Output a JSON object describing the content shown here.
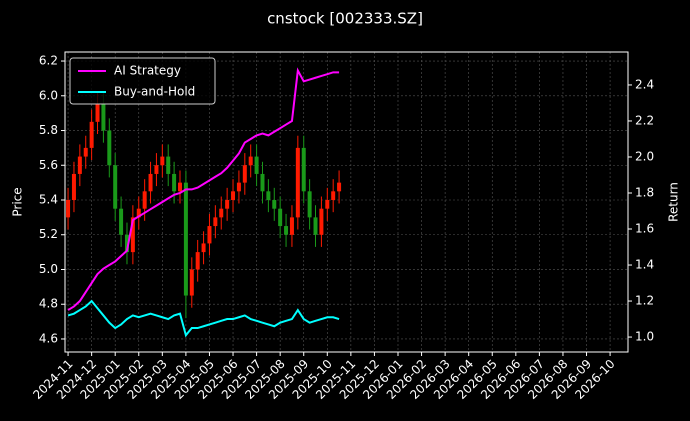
{
  "chart_data": {
    "type": "candlestick",
    "title": "cnstock [002333.SZ]",
    "ylabel": "Price",
    "y2label": "Return",
    "x": [
      0,
      0.25,
      0.5,
      0.75,
      1,
      1.25,
      1.5,
      1.75,
      2,
      2.25,
      2.5,
      2.75,
      3,
      3.25,
      3.5,
      3.75,
      4,
      4.25,
      4.5,
      4.75,
      5,
      5.25,
      5.5,
      5.75,
      6,
      6.25,
      6.5,
      6.75,
      7,
      7.25,
      7.5,
      7.75,
      8,
      8.25,
      8.5,
      8.75,
      9,
      9.25,
      9.5,
      9.75,
      10,
      10.25,
      10.5,
      10.75,
      11,
      11.25,
      11.5
    ],
    "open": [
      5.3,
      5.4,
      5.55,
      5.65,
      5.7,
      5.85,
      5.95,
      5.8,
      5.6,
      5.35,
      5.2,
      5.1,
      5.3,
      5.35,
      5.45,
      5.55,
      5.6,
      5.65,
      5.55,
      5.45,
      5.5,
      4.85,
      5.0,
      5.1,
      5.15,
      5.25,
      5.3,
      5.35,
      5.4,
      5.45,
      5.5,
      5.6,
      5.65,
      5.55,
      5.45,
      5.4,
      5.35,
      5.25,
      5.2,
      5.3,
      5.7,
      5.45,
      5.3,
      5.2,
      5.35,
      5.4,
      5.45
    ],
    "high": [
      5.47,
      5.62,
      5.72,
      5.77,
      5.92,
      6.02,
      6.02,
      5.87,
      5.67,
      5.42,
      5.27,
      5.37,
      5.42,
      5.52,
      5.62,
      5.67,
      5.72,
      5.72,
      5.62,
      5.57,
      5.57,
      5.07,
      5.17,
      5.22,
      5.32,
      5.37,
      5.42,
      5.47,
      5.52,
      5.57,
      5.67,
      5.72,
      5.72,
      5.62,
      5.52,
      5.47,
      5.42,
      5.32,
      5.37,
      5.77,
      5.77,
      5.52,
      5.37,
      5.42,
      5.47,
      5.52,
      5.57
    ],
    "low": [
      5.23,
      5.33,
      5.48,
      5.58,
      5.63,
      5.78,
      5.73,
      5.53,
      5.28,
      5.13,
      5.03,
      5.03,
      5.23,
      5.28,
      5.38,
      5.48,
      5.53,
      5.48,
      5.38,
      5.38,
      4.72,
      4.78,
      4.93,
      5.03,
      5.08,
      5.18,
      5.23,
      5.28,
      5.33,
      5.38,
      5.43,
      5.53,
      5.48,
      5.38,
      5.33,
      5.28,
      5.18,
      5.13,
      5.13,
      5.23,
      5.38,
      5.23,
      5.13,
      5.13,
      5.28,
      5.33,
      5.38
    ],
    "close": [
      5.4,
      5.55,
      5.65,
      5.7,
      5.85,
      5.95,
      5.8,
      5.6,
      5.35,
      5.2,
      5.1,
      5.3,
      5.35,
      5.45,
      5.55,
      5.6,
      5.65,
      5.55,
      5.45,
      5.5,
      4.85,
      5.0,
      5.1,
      5.15,
      5.25,
      5.3,
      5.35,
      5.4,
      5.45,
      5.5,
      5.6,
      5.65,
      5.55,
      5.45,
      5.4,
      5.35,
      5.25,
      5.2,
      5.3,
      5.7,
      5.45,
      5.3,
      5.2,
      5.35,
      5.4,
      5.45,
      5.5
    ],
    "up_color": "#ff1a00",
    "down_color": "#1a9a1a",
    "series": [
      {
        "name": "AI Strategy",
        "color": "#ff00ff",
        "axis": "y2",
        "values": [
          1.15,
          1.17,
          1.2,
          1.25,
          1.3,
          1.35,
          1.38,
          1.4,
          1.42,
          1.45,
          1.48,
          1.65,
          1.67,
          1.69,
          1.71,
          1.73,
          1.75,
          1.77,
          1.79,
          1.8,
          1.82,
          1.82,
          1.83,
          1.85,
          1.87,
          1.89,
          1.91,
          1.94,
          1.98,
          2.02,
          2.08,
          2.1,
          2.12,
          2.13,
          2.12,
          2.14,
          2.16,
          2.18,
          2.2,
          2.48,
          2.42,
          2.43,
          2.44,
          2.45,
          2.46,
          2.47,
          2.47
        ]
      },
      {
        "name": "Buy-and-Hold",
        "color": "#00ffff",
        "axis": "y2",
        "values": [
          1.12,
          1.13,
          1.15,
          1.17,
          1.2,
          1.16,
          1.12,
          1.08,
          1.05,
          1.07,
          1.1,
          1.12,
          1.11,
          1.12,
          1.13,
          1.12,
          1.11,
          1.1,
          1.12,
          1.13,
          1.01,
          1.05,
          1.05,
          1.06,
          1.07,
          1.08,
          1.09,
          1.1,
          1.1,
          1.11,
          1.12,
          1.1,
          1.09,
          1.08,
          1.07,
          1.06,
          1.08,
          1.09,
          1.1,
          1.15,
          1.1,
          1.08,
          1.09,
          1.1,
          1.11,
          1.11,
          1.1
        ]
      }
    ],
    "xlim": [
      -0.13,
      23.76
    ],
    "xticks": [
      {
        "value": 0,
        "label": "2024-11"
      },
      {
        "value": 1,
        "label": "2024-12"
      },
      {
        "value": 2,
        "label": "2025-01"
      },
      {
        "value": 3,
        "label": "2025-02"
      },
      {
        "value": 4,
        "label": "2025-03"
      },
      {
        "value": 5,
        "label": "2025-04"
      },
      {
        "value": 6,
        "label": "2025-05"
      },
      {
        "value": 7,
        "label": "2025-06"
      },
      {
        "value": 8,
        "label": "2025-07"
      },
      {
        "value": 9,
        "label": "2025-08"
      },
      {
        "value": 10,
        "label": "2025-09"
      },
      {
        "value": 11,
        "label": "2025-10"
      },
      {
        "value": 12,
        "label": "2025-11"
      },
      {
        "value": 13,
        "label": "2025-12"
      },
      {
        "value": 14,
        "label": "2026-01"
      },
      {
        "value": 15,
        "label": "2026-02"
      },
      {
        "value": 16,
        "label": "2026-03"
      },
      {
        "value": 17,
        "label": "2026-04"
      },
      {
        "value": 18,
        "label": "2026-05"
      },
      {
        "value": 19,
        "label": "2026-06"
      },
      {
        "value": 20,
        "label": "2026-07"
      },
      {
        "value": 21,
        "label": "2026-08"
      },
      {
        "value": 22,
        "label": "2026-09"
      },
      {
        "value": 23,
        "label": "2026-10"
      }
    ],
    "ylim": [
      4.525,
      6.252
    ],
    "yticks": [
      {
        "value": 4.6,
        "label": "4.6"
      },
      {
        "value": 4.8,
        "label": "4.8"
      },
      {
        "value": 5.0,
        "label": "5.0"
      },
      {
        "value": 5.2,
        "label": "5.2"
      },
      {
        "value": 5.4,
        "label": "5.4"
      },
      {
        "value": 5.6,
        "label": "5.6"
      },
      {
        "value": 5.8,
        "label": "5.8"
      },
      {
        "value": 6.0,
        "label": "6.0"
      },
      {
        "value": 6.2,
        "label": "6.2"
      }
    ],
    "y2lim": [
      0.917,
      2.583
    ],
    "y2ticks": [
      {
        "value": 1.0,
        "label": "1.0"
      },
      {
        "value": 1.2,
        "label": "1.2"
      },
      {
        "value": 1.4,
        "label": "1.4"
      },
      {
        "value": 1.6,
        "label": "1.6"
      },
      {
        "value": 1.8,
        "label": "1.8"
      },
      {
        "value": 2.0,
        "label": "2.0"
      },
      {
        "value": 2.2,
        "label": "2.2"
      },
      {
        "value": 2.4,
        "label": "2.4"
      }
    ],
    "grid": true,
    "legend": "upper left"
  }
}
